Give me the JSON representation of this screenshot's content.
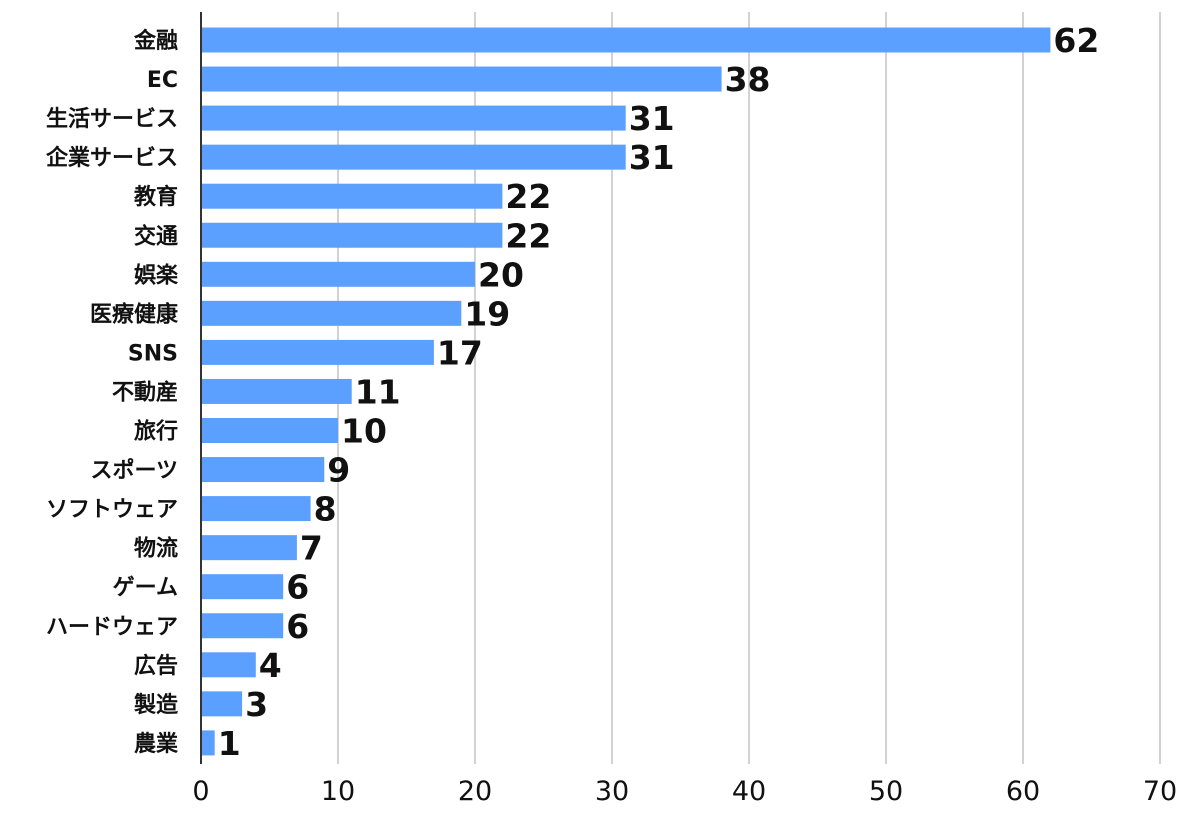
{
  "chart_data": {
    "type": "bar",
    "orientation": "horizontal",
    "categories": [
      "金融",
      "EC",
      "生活サービス",
      "企業サービス",
      "教育",
      "交通",
      "娯楽",
      "医療健康",
      "SNS",
      "不動産",
      "旅行",
      "スポーツ",
      "ソフトウェア",
      "物流",
      "ゲーム",
      "ハードウェア",
      "広告",
      "製造",
      "農業"
    ],
    "values": [
      62,
      38,
      31,
      31,
      22,
      22,
      20,
      19,
      17,
      11,
      10,
      9,
      8,
      7,
      6,
      6,
      4,
      3,
      1
    ],
    "title": "",
    "xlabel": "",
    "ylabel": "",
    "xlim": [
      0,
      70
    ],
    "xticks": [
      0,
      10,
      20,
      30,
      40,
      50,
      60,
      70
    ],
    "grid": "vertical",
    "legend": "none",
    "bar_color": "#5ba0ff",
    "data_labels": true
  }
}
